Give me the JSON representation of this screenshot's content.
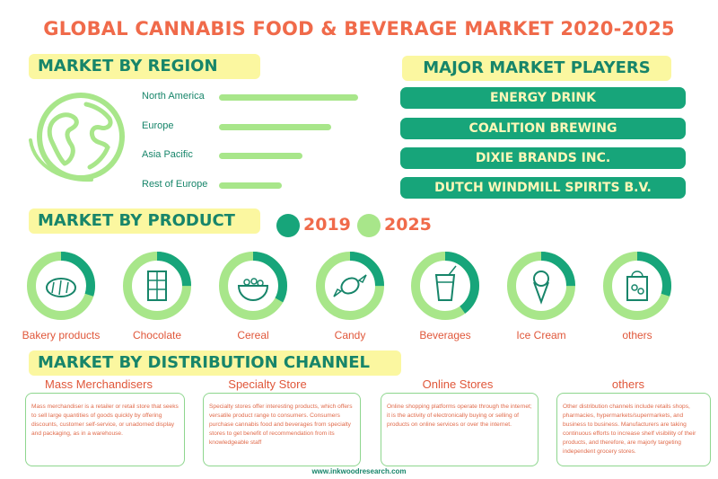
{
  "title": "GLOBAL CANNABIS FOOD & BEVERAGE MARKET 2020-2025",
  "region": {
    "heading": "MARKET BY REGION",
    "items": [
      {
        "label": "North America",
        "value": 0.62
      },
      {
        "label": "Europe",
        "value": 0.5
      },
      {
        "label": "Asia Pacific",
        "value": 0.37
      },
      {
        "label": "Rest of Europe",
        "value": 0.28
      }
    ]
  },
  "players": {
    "heading": "MAJOR MARKET PLAYERS",
    "items": [
      "ENERGY DRINK",
      "COALITION BREWING",
      "DIXIE BRANDS INC.",
      "DUTCH WINDMILL SPIRITS B.V."
    ]
  },
  "product": {
    "heading": "MARKET BY PRODUCT",
    "legend": [
      {
        "label": "2019",
        "color": "#17a57a"
      },
      {
        "label": "2025",
        "color": "#a8e68a"
      }
    ],
    "items": [
      {
        "label": "Bakery products",
        "icon": "bread-icon",
        "share_2019": 0.3
      },
      {
        "label": "Chocolate",
        "icon": "chocolate-icon",
        "share_2019": 0.25
      },
      {
        "label": "Cereal",
        "icon": "cereal-bowl-icon",
        "share_2019": 0.33
      },
      {
        "label": "Candy",
        "icon": "candy-icon",
        "share_2019": 0.25
      },
      {
        "label": "Beverages",
        "icon": "drink-glass-icon",
        "share_2019": 0.4
      },
      {
        "label": "Ice Cream",
        "icon": "ice-cream-icon",
        "share_2019": 0.25
      },
      {
        "label": "others",
        "icon": "grocery-bag-icon",
        "share_2019": 0.3
      }
    ]
  },
  "distribution": {
    "heading": "MARKET BY DISTRIBUTION CHANNEL",
    "items": [
      {
        "title": "Mass Merchandisers",
        "text": "Mass merchandiser is a retailer or retail store that seeks to sell large quantities of goods quickly by offering discounts, customer self-service, or unadorned display and packaging, as in a warehouse."
      },
      {
        "title": "Specialty Store",
        "text": "Specialty stores offer interesting products, which offers versatile product range to consumers. Consumers purchase cannabis food and beverages from specialty stores to get benefit of recommendation from its knowledgeable staff"
      },
      {
        "title": "Online Stores",
        "text": "Online shopping platforms operate through the internet; it is the activity of electronically buying or selling of products on online services or over the internet."
      },
      {
        "title": "others",
        "text": "Other distribution channels include retails shops, pharmacies, hypermarkets/supermarkets, and business to business. Manufacturers are taking continuous efforts to increase shelf visibility of their products, and therefore, are majorly targeting independent grocery stores."
      }
    ]
  },
  "footer": "www.inkwoodresearch.com",
  "colors": {
    "accent": "#f06a4a",
    "dark_green": "#17a57a",
    "light_green": "#a8e68a",
    "highlight": "#fbf7a0"
  }
}
